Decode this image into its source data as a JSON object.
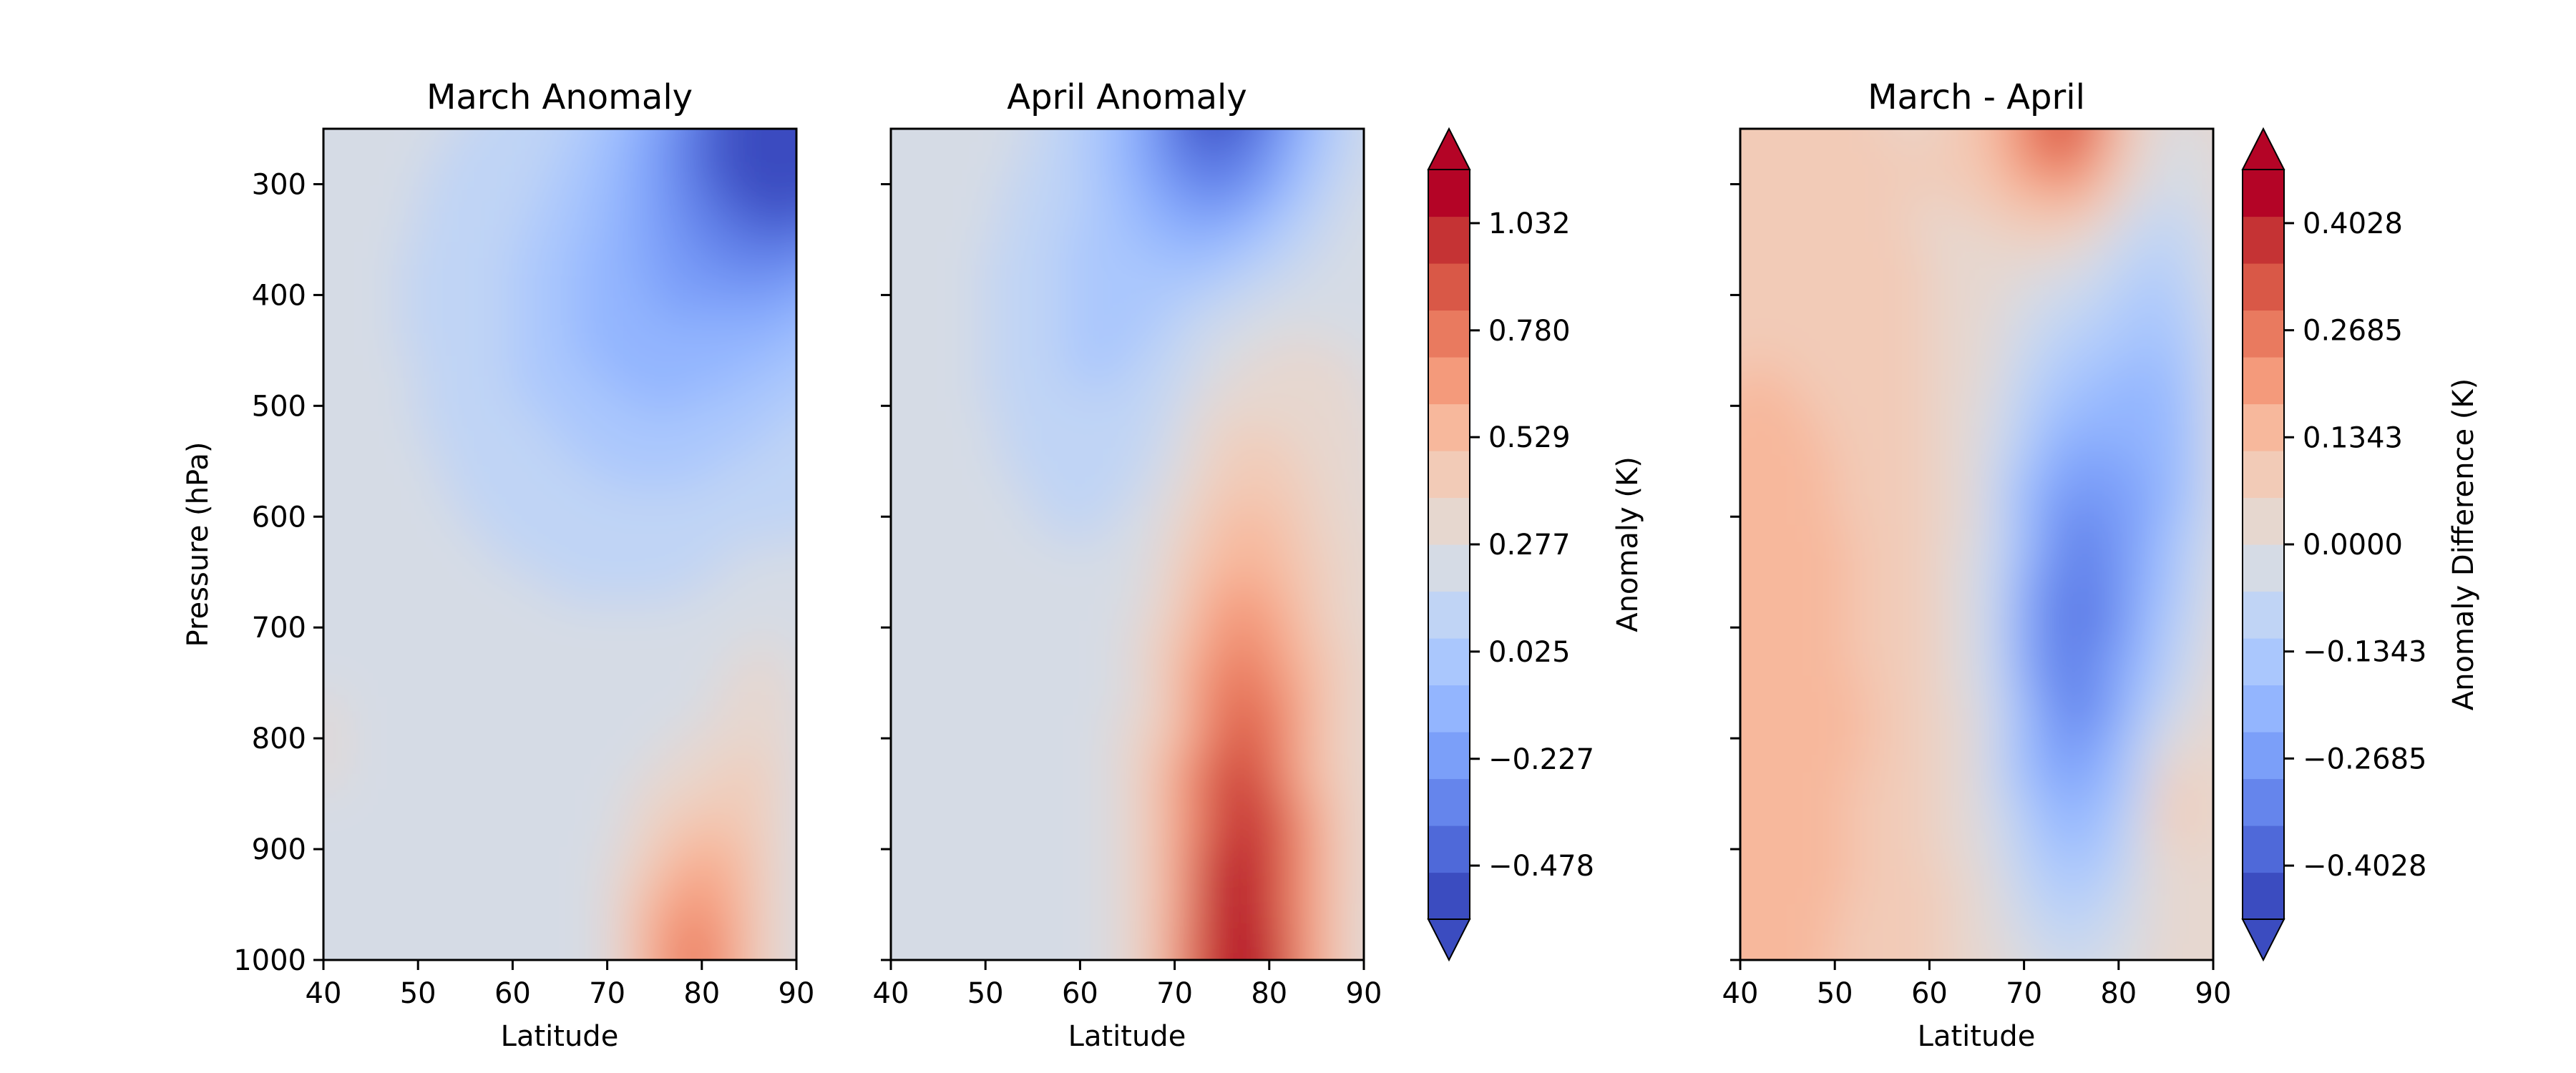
{
  "chart_data": [
    {
      "type": "heatmap",
      "subtype": "filled-contour",
      "title": "March Anomaly",
      "xlabel": "Latitude",
      "ylabel": "Pressure (hPa)",
      "xlim": [
        40,
        90
      ],
      "ylim": [
        1000,
        250
      ],
      "x_ticks": [
        "40",
        "50",
        "60",
        "70",
        "80",
        "90"
      ],
      "y_ticks": [
        "300",
        "400",
        "500",
        "600",
        "700",
        "800",
        "900",
        "1000"
      ],
      "y_inverted": true,
      "colormap": "coolwarm",
      "units": "K",
      "features": [
        "warm (~0.1 to 0.2) at low latitudes 40-50 below 450 hPa",
        "cold minimum (~ -0.6) near 85-90N at 250-350 hPa",
        "warm maximum (~0.7) near 75-85N at 950-1000 hPa"
      ]
    },
    {
      "type": "heatmap",
      "subtype": "filled-contour",
      "title": "April Anomaly",
      "xlabel": "Latitude",
      "xlim": [
        40,
        90
      ],
      "ylim": [
        1000,
        250
      ],
      "x_ticks": [
        "40",
        "50",
        "60",
        "70",
        "80",
        "90"
      ],
      "y_inverted": true,
      "colormap": "coolwarm",
      "units": "K",
      "features": [
        "near-neutral (~0.2) at 40-52N throughout",
        "cold minimum (~ -0.5) near 75N at 250-300 hPa",
        "warm maximum (~1.1) near 77N at 1000 hPa extending upward to ~550 hPa"
      ]
    },
    {
      "type": "heatmap",
      "subtype": "filled-contour",
      "title": "March - April",
      "xlabel": "Latitude",
      "xlim": [
        40,
        90
      ],
      "ylim": [
        1000,
        250
      ],
      "x_ticks": [
        "40",
        "50",
        "60",
        "70",
        "80",
        "90"
      ],
      "y_inverted": true,
      "colormap": "coolwarm",
      "units": "K",
      "features": [
        "positive difference (~0.15 to 0.2) at 40-55N below 450 hPa",
        "positive maximum (~0.35) near 75N at 250 hPa",
        "negative minimum (~ -0.35) near 75N at 600-800 hPa",
        "small positive spot near 86N at 850 hPa"
      ]
    }
  ],
  "colorbars": [
    {
      "label": "Anomaly (K)",
      "ticks": [
        "1.032",
        "0.780",
        "0.529",
        "0.277",
        "0.025",
        "−0.227",
        "−0.478"
      ],
      "tick_values": [
        1.032,
        0.78,
        0.529,
        0.277,
        0.025,
        -0.227,
        -0.478
      ],
      "range": [
        -0.604,
        1.158
      ],
      "extend": "both",
      "levels": 14
    },
    {
      "label": "Anomaly Difference (K)",
      "ticks": [
        "0.4028",
        "0.2685",
        "0.1343",
        "0.0000",
        "−0.1343",
        "−0.2685",
        "−0.4028"
      ],
      "tick_values": [
        0.4028,
        0.2685,
        0.1343,
        0.0,
        -0.1343,
        -0.2685,
        -0.4028
      ],
      "range": [
        -0.47,
        0.47
      ],
      "extend": "both",
      "levels": 14
    }
  ],
  "colors": {
    "coolwarm": [
      "#3b4cc0",
      "#4f69d9",
      "#6585ec",
      "#7b9ff9",
      "#93b5fe",
      "#aac7fd",
      "#c0d4f5",
      "#d5dbe5",
      "#e6d7cf",
      "#f2cbb7",
      "#f7b89c",
      "#f49a7b",
      "#e97a5f",
      "#d95847",
      "#c53334",
      "#b40426"
    ]
  }
}
